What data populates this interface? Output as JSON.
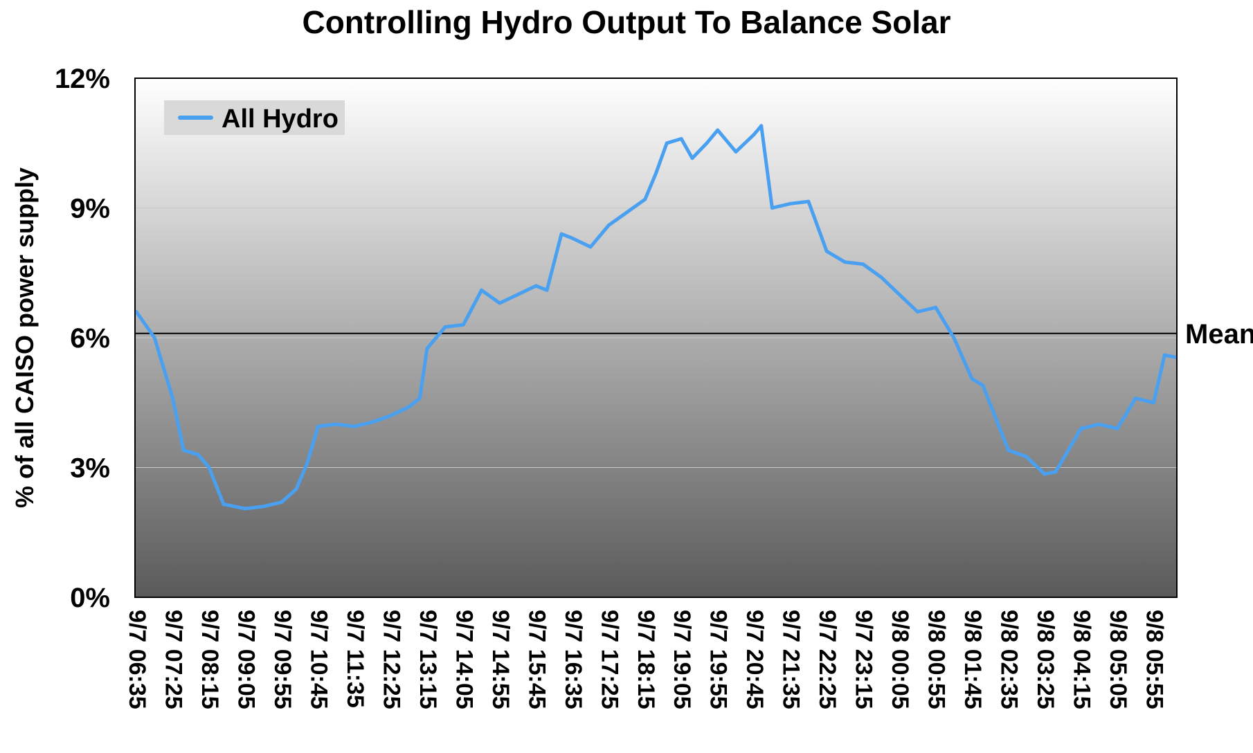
{
  "chart_data": {
    "type": "line",
    "title": "Controlling Hydro Output To Balance Solar",
    "xlabel": "",
    "ylabel": "% of all CAISO power supply",
    "ylim": [
      0,
      12
    ],
    "yticks": [
      0,
      3,
      6,
      9,
      12
    ],
    "ytick_labels": [
      "0%",
      "3%",
      "6%",
      "9%",
      "12%"
    ],
    "x_tick_labels": [
      "9/7 06:35",
      "9/7 07:25",
      "9/7 08:15",
      "9/7 09:05",
      "9/7 09:55",
      "9/7 10:45",
      "9/7 11:35",
      "9/7 12:25",
      "9/7 13:15",
      "9/7 14:05",
      "9/7 14:55",
      "9/7 15:45",
      "9/7 16:35",
      "9/7 17:25",
      "9/7 18:15",
      "9/7 19:05",
      "9/7 19:55",
      "9/7 20:45",
      "9/7 21:35",
      "9/7 22:25",
      "9/7 23:15",
      "9/8 00:05",
      "9/8 00:55",
      "9/8 01:45",
      "9/8 02:35",
      "9/8 03:25",
      "9/8 04:15",
      "9/8 05:05",
      "9/8 05:55"
    ],
    "grid": true,
    "legend": "top-left",
    "annotations": [
      {
        "text": "Mean",
        "y": 6.1
      }
    ],
    "colors": {
      "series": "#4aa0f0",
      "mean_line": "#000000"
    },
    "series": [
      {
        "name": "All Hydro",
        "x": [
          "9/7 06:35",
          "9/7 07:00",
          "9/7 07:25",
          "9/7 07:40",
          "9/7 08:00",
          "9/7 08:15",
          "9/7 08:35",
          "9/7 09:05",
          "9/7 09:30",
          "9/7 09:55",
          "9/7 10:15",
          "9/7 10:30",
          "9/7 10:45",
          "9/7 11:10",
          "9/7 11:35",
          "9/7 12:00",
          "9/7 12:25",
          "9/7 12:50",
          "9/7 13:05",
          "9/7 13:15",
          "9/7 13:40",
          "9/7 14:05",
          "9/7 14:30",
          "9/7 14:55",
          "9/7 15:20",
          "9/7 15:45",
          "9/7 16:00",
          "9/7 16:20",
          "9/7 16:35",
          "9/7 17:00",
          "9/7 17:25",
          "9/7 17:50",
          "9/7 18:15",
          "9/7 18:30",
          "9/7 18:45",
          "9/7 19:05",
          "9/7 19:20",
          "9/7 19:40",
          "9/7 19:55",
          "9/7 20:20",
          "9/7 20:45",
          "9/7 20:55",
          "9/7 21:10",
          "9/7 21:35",
          "9/7 22:00",
          "9/7 22:25",
          "9/7 22:50",
          "9/7 23:15",
          "9/7 23:40",
          "9/8 00:05",
          "9/8 00:30",
          "9/8 00:55",
          "9/8 01:20",
          "9/8 01:45",
          "9/8 02:00",
          "9/8 02:35",
          "9/8 03:00",
          "9/8 03:25",
          "9/8 03:40",
          "9/8 04:15",
          "9/8 04:40",
          "9/8 05:05",
          "9/8 05:30",
          "9/8 05:55",
          "9/8 06:10",
          "9/8 06:25"
        ],
        "values": [
          6.6,
          6.0,
          4.6,
          3.4,
          3.3,
          3.0,
          2.15,
          2.05,
          2.1,
          2.2,
          2.5,
          3.1,
          3.95,
          4.0,
          3.95,
          4.05,
          4.2,
          4.4,
          4.6,
          5.75,
          6.25,
          6.3,
          7.1,
          6.8,
          7.0,
          7.2,
          7.1,
          8.4,
          8.3,
          8.1,
          8.6,
          8.9,
          9.2,
          9.8,
          10.5,
          10.6,
          10.15,
          10.5,
          10.8,
          10.3,
          10.7,
          10.9,
          9.0,
          9.1,
          9.15,
          8.0,
          7.75,
          7.7,
          7.4,
          7.0,
          6.6,
          6.7,
          6.0,
          5.05,
          4.9,
          3.4,
          3.25,
          2.85,
          2.9,
          3.9,
          4.0,
          3.9,
          4.6,
          4.5,
          5.6,
          5.55
        ]
      }
    ]
  }
}
